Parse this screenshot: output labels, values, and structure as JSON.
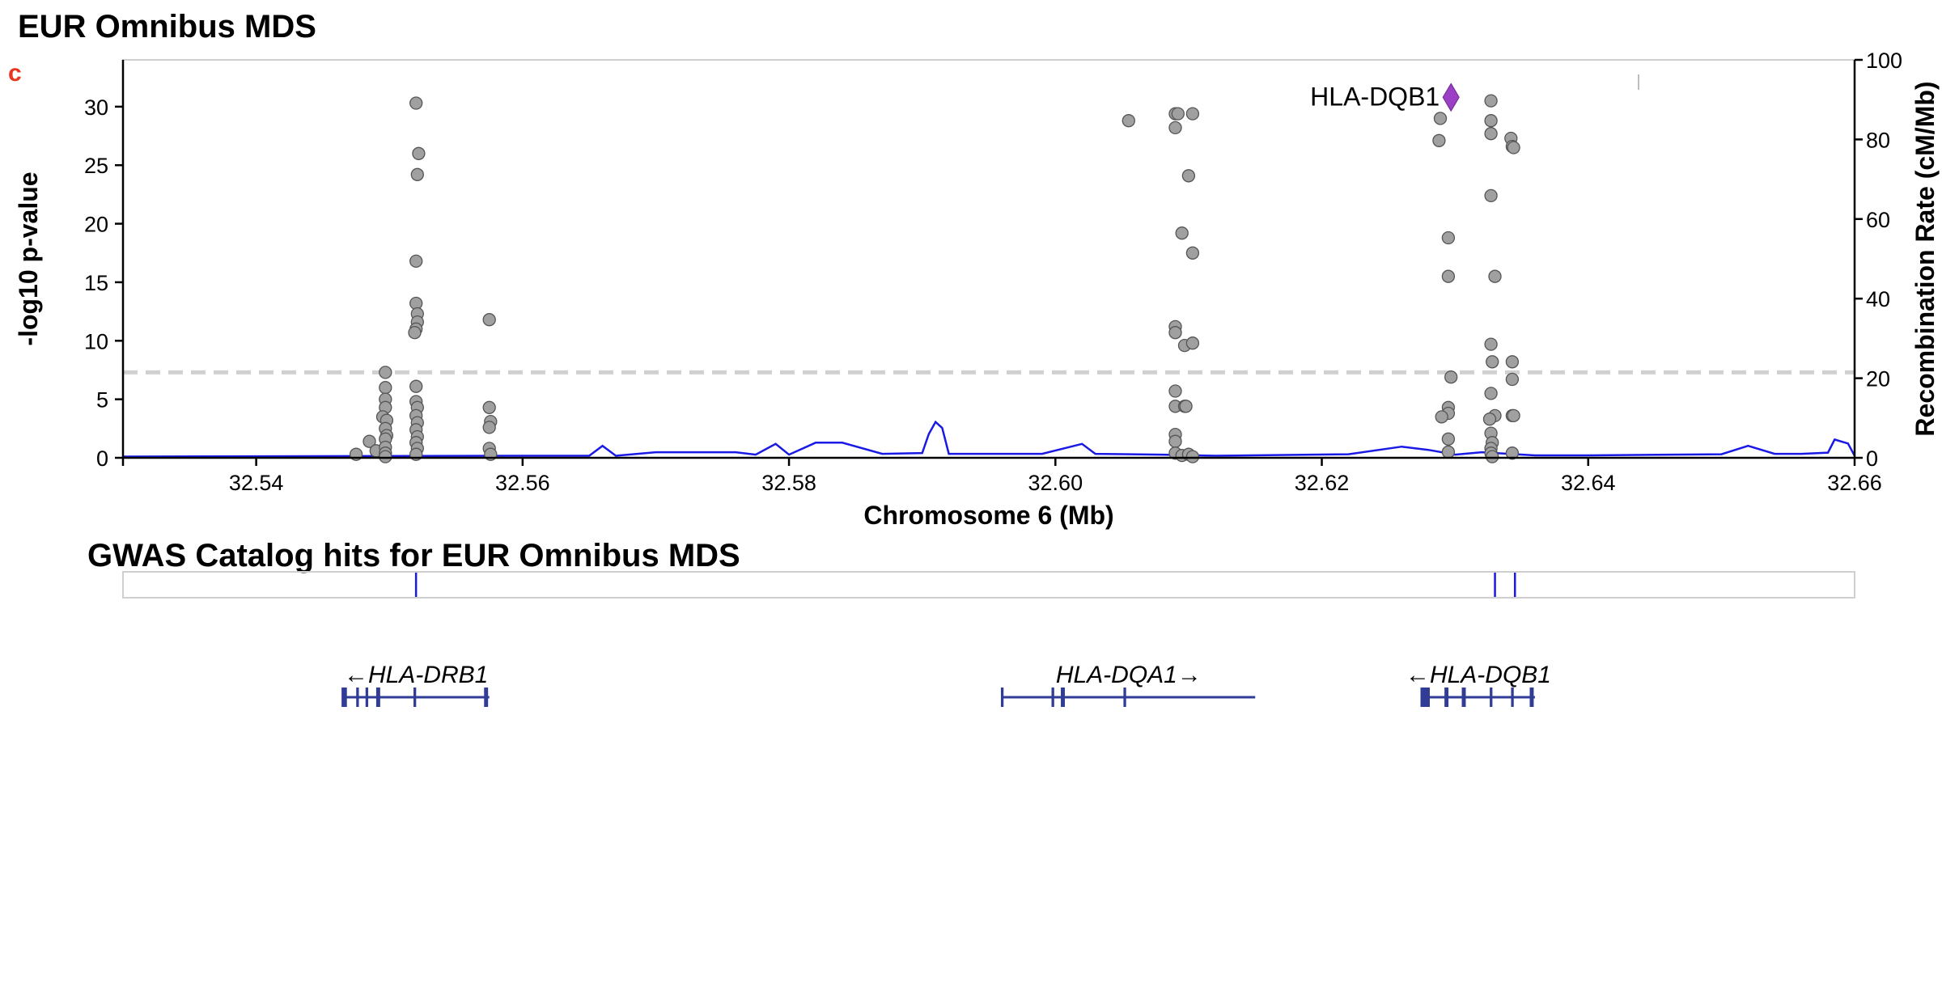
{
  "title": "EUR Omnibus MDS",
  "panel_letter": "c",
  "gwas_title": "GWAS Catalog hits for EUR Omnibus MDS",
  "colors": {
    "points": "#a0a0a0",
    "point_stroke": "#555555",
    "lead": "#9b3fc6",
    "recomb": "#1a1ae6",
    "threshold": "#d0d0d0",
    "gene": "#303c96",
    "gwas": "#1a1ae6",
    "panel_letter": "#e8351e"
  },
  "chart_data": {
    "type": "scatter",
    "xlabel": "Chromosome 6 (Mb)",
    "ylabel": "-log10 p-value",
    "y2label": "Recombination Rate (cM/Mb)",
    "xlim": [
      32.53,
      32.66
    ],
    "ylim": [
      0,
      34
    ],
    "y2lim": [
      0,
      100
    ],
    "xticks": [
      32.54,
      32.56,
      32.58,
      32.6,
      32.62,
      32.64,
      32.66
    ],
    "xtick_labels": [
      "32.54",
      "32.56",
      "32.58",
      "32.60",
      "32.62",
      "32.64",
      "32.66"
    ],
    "yticks": [
      0,
      5,
      10,
      15,
      20,
      25,
      30
    ],
    "y2ticks": [
      0,
      20,
      40,
      60,
      80,
      100
    ],
    "threshold": 7.3,
    "lead": {
      "label": "HLA-DQB1",
      "x": 32.6297,
      "y": 30.8
    },
    "points": [
      [
        32.5475,
        0.3
      ],
      [
        32.5485,
        1.4
      ],
      [
        32.549,
        0.6
      ],
      [
        32.5497,
        7.3
      ],
      [
        32.5497,
        6.0
      ],
      [
        32.5497,
        5.0
      ],
      [
        32.5497,
        4.3
      ],
      [
        32.5495,
        3.5
      ],
      [
        32.5498,
        3.2
      ],
      [
        32.5497,
        2.5
      ],
      [
        32.5498,
        1.9
      ],
      [
        32.5497,
        1.6
      ],
      [
        32.5497,
        0.9
      ],
      [
        32.5497,
        0.4
      ],
      [
        32.5497,
        0.1
      ],
      [
        32.552,
        30.3
      ],
      [
        32.5522,
        26.0
      ],
      [
        32.5521,
        24.2
      ],
      [
        32.552,
        16.8
      ],
      [
        32.552,
        13.2
      ],
      [
        32.5521,
        12.3
      ],
      [
        32.5521,
        11.6
      ],
      [
        32.552,
        11.0
      ],
      [
        32.5519,
        10.7
      ],
      [
        32.552,
        6.1
      ],
      [
        32.552,
        4.8
      ],
      [
        32.5521,
        4.3
      ],
      [
        32.552,
        3.6
      ],
      [
        32.5521,
        3.0
      ],
      [
        32.552,
        2.4
      ],
      [
        32.5521,
        1.8
      ],
      [
        32.552,
        1.3
      ],
      [
        32.5521,
        0.8
      ],
      [
        32.552,
        0.3
      ],
      [
        32.5575,
        11.8
      ],
      [
        32.5575,
        4.3
      ],
      [
        32.5576,
        3.1
      ],
      [
        32.5575,
        2.6
      ],
      [
        32.5575,
        0.8
      ],
      [
        32.5576,
        0.3
      ],
      [
        32.6055,
        28.8
      ],
      [
        32.609,
        29.4
      ],
      [
        32.6092,
        29.4
      ],
      [
        32.609,
        28.2
      ],
      [
        32.6103,
        29.4
      ],
      [
        32.61,
        24.1
      ],
      [
        32.6095,
        19.2
      ],
      [
        32.6103,
        17.5
      ],
      [
        32.609,
        11.2
      ],
      [
        32.609,
        10.7
      ],
      [
        32.6097,
        9.6
      ],
      [
        32.6103,
        9.8
      ],
      [
        32.609,
        5.7
      ],
      [
        32.609,
        4.4
      ],
      [
        32.6097,
        4.4
      ],
      [
        32.6098,
        4.4
      ],
      [
        32.609,
        2.0
      ],
      [
        32.609,
        1.4
      ],
      [
        32.609,
        0.4
      ],
      [
        32.6095,
        0.2
      ],
      [
        32.61,
        0.3
      ],
      [
        32.6103,
        0.1
      ],
      [
        32.6289,
        29.0
      ],
      [
        32.6288,
        27.1
      ],
      [
        32.6295,
        18.8
      ],
      [
        32.6295,
        15.5
      ],
      [
        32.6297,
        6.9
      ],
      [
        32.6295,
        4.3
      ],
      [
        32.6295,
        3.8
      ],
      [
        32.629,
        3.5
      ],
      [
        32.6295,
        1.6
      ],
      [
        32.6295,
        0.5
      ],
      [
        32.6327,
        30.5
      ],
      [
        32.6327,
        28.8
      ],
      [
        32.6327,
        27.7
      ],
      [
        32.6327,
        22.4
      ],
      [
        32.633,
        15.5
      ],
      [
        32.6327,
        9.7
      ],
      [
        32.6328,
        8.2
      ],
      [
        32.6327,
        5.5
      ],
      [
        32.633,
        3.6
      ],
      [
        32.6326,
        3.3
      ],
      [
        32.6327,
        2.1
      ],
      [
        32.6328,
        1.3
      ],
      [
        32.6327,
        0.8
      ],
      [
        32.6327,
        0.4
      ],
      [
        32.6328,
        0.1
      ],
      [
        32.6342,
        27.3
      ],
      [
        32.6343,
        26.6
      ],
      [
        32.6344,
        26.5
      ],
      [
        32.6343,
        8.2
      ],
      [
        32.6343,
        6.7
      ],
      [
        32.6343,
        3.6
      ],
      [
        32.6344,
        3.6
      ],
      [
        32.6343,
        0.4
      ]
    ],
    "recombination": [
      [
        32.53,
        0.3
      ],
      [
        32.56,
        0.5
      ],
      [
        32.565,
        0.5
      ],
      [
        32.566,
        3.0
      ],
      [
        32.567,
        0.5
      ],
      [
        32.57,
        1.4
      ],
      [
        32.576,
        1.4
      ],
      [
        32.5775,
        0.8
      ],
      [
        32.579,
        3.5
      ],
      [
        32.58,
        0.8
      ],
      [
        32.582,
        3.8
      ],
      [
        32.584,
        3.8
      ],
      [
        32.587,
        1.0
      ],
      [
        32.59,
        1.2
      ],
      [
        32.5905,
        6.0
      ],
      [
        32.591,
        9.0
      ],
      [
        32.5915,
        7.5
      ],
      [
        32.592,
        1.0
      ],
      [
        32.599,
        1.0
      ],
      [
        32.602,
        3.5
      ],
      [
        32.603,
        1.0
      ],
      [
        32.608,
        0.8
      ],
      [
        32.612,
        0.5
      ],
      [
        32.622,
        0.9
      ],
      [
        32.626,
        2.8
      ],
      [
        32.628,
        2.0
      ],
      [
        32.63,
        0.8
      ],
      [
        32.632,
        1.4
      ],
      [
        32.636,
        0.6
      ],
      [
        32.64,
        0.6
      ],
      [
        32.65,
        0.9
      ],
      [
        32.652,
        3.0
      ],
      [
        32.654,
        1.0
      ],
      [
        32.656,
        1.0
      ],
      [
        32.658,
        1.3
      ],
      [
        32.6585,
        4.6
      ],
      [
        32.6595,
        3.6
      ],
      [
        32.66,
        0.5
      ]
    ]
  },
  "gwas_hits": [
    32.552,
    32.633,
    32.6345
  ],
  "genes": [
    {
      "label": "←HLA-DRB1",
      "start": 32.5465,
      "end": 32.5575,
      "exons": [
        [
          32.5465,
          32.5469
        ],
        [
          32.5476,
          32.5478
        ],
        [
          32.5483,
          32.5485
        ],
        [
          32.5491,
          32.5494
        ],
        [
          32.5519,
          32.5521
        ],
        [
          32.5572,
          32.5575
        ]
      ]
    },
    {
      "label": "HLA-DQA1→",
      "start": 32.596,
      "end": 32.615,
      "exons": [
        [
          32.596,
          32.5962
        ],
        [
          32.5998,
          32.6
        ],
        [
          32.6005,
          32.6008
        ],
        [
          32.6052,
          32.6054
        ]
      ]
    },
    {
      "label": "←HLA-DQB1",
      "start": 32.6275,
      "end": 32.636,
      "exons": [
        [
          32.6275,
          32.6282
        ],
        [
          32.6293,
          32.6296
        ],
        [
          32.6306,
          32.6309
        ],
        [
          32.6327,
          32.6329
        ],
        [
          32.6343,
          32.6345
        ],
        [
          32.6357,
          32.636
        ]
      ]
    }
  ]
}
